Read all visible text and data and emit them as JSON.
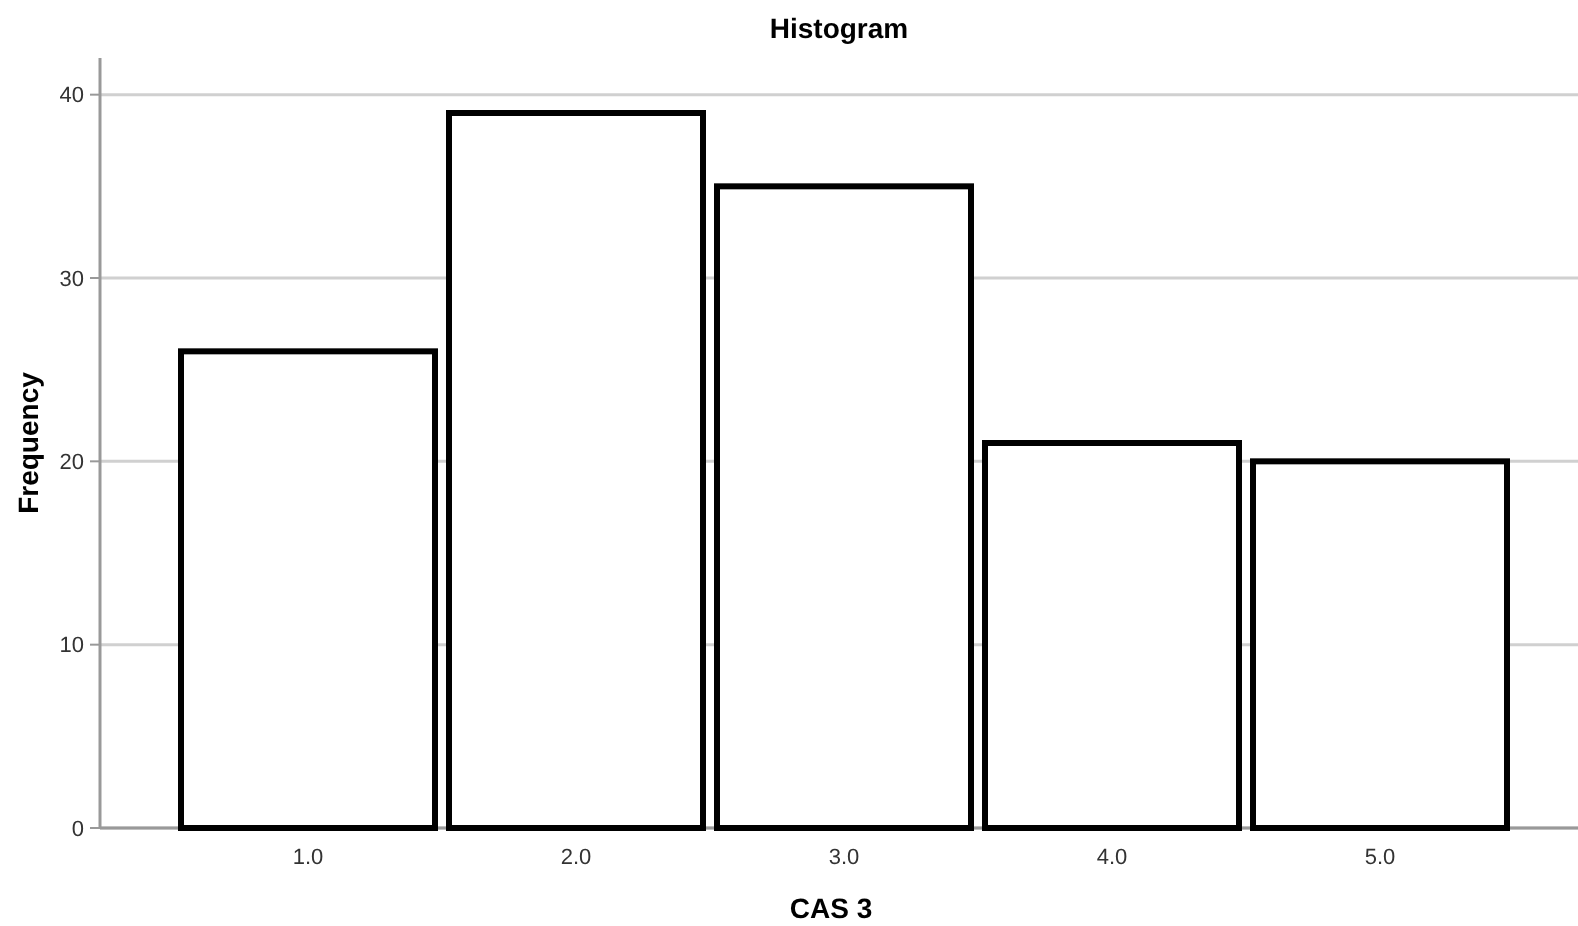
{
  "chart_data": {
    "type": "bar",
    "title": "Histogram",
    "xlabel": "CAS 3",
    "ylabel": "Frequency",
    "categories": [
      "1.0",
      "2.0",
      "3.0",
      "4.0",
      "5.0"
    ],
    "values": [
      26,
      39,
      35,
      21,
      20
    ],
    "color": "#ffffff",
    "ylim": [
      0,
      42
    ],
    "yticks": [
      0,
      10,
      20,
      30,
      40
    ],
    "grid": "y"
  }
}
